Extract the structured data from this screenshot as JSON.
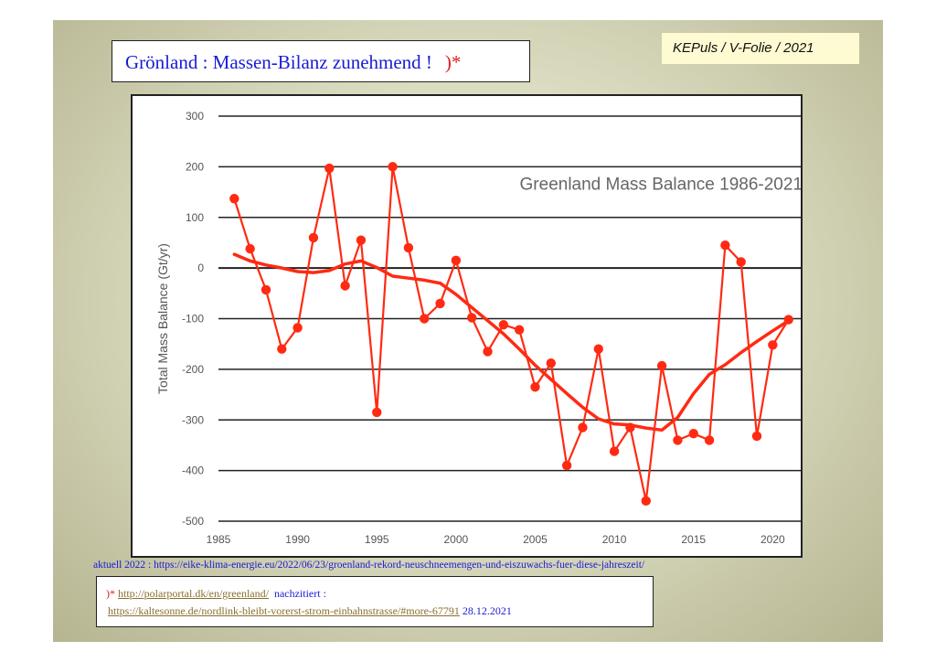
{
  "slide": {
    "title": "Grönland : Massen-Bilanz zunehmend !",
    "title_marker": ")*",
    "tag": "KEPuls / V-Folie / 2021",
    "aktuell": "aktuell 2022 : https://eike-klima-energie.eu/2022/06/23/groenland-rekord-neuschneemengen-und-eiszuwachs-fuer-diese-jahreszeit/",
    "source_marker": ")*",
    "source_link1": "http://polarportal.dk/en/greenland/",
    "source_note": "nachzitiert :",
    "source_link2": "https://kaltesonne.de/nordlink-bleibt-vorerst-strom-einbahnstrasse/#more-67791",
    "source_date": "28.12.2021"
  },
  "colors": {
    "series": "#ff2a12",
    "title_text": "#1a1ad6",
    "marker_red": "#e01b1b"
  },
  "chart_data": {
    "type": "line",
    "title": "Greenland Mass Balance 1986-2021",
    "xlabel": "",
    "ylabel": "Total Mass Balance (Gt/yr)",
    "xlim": [
      1985,
      2022
    ],
    "ylim": [
      -500,
      300
    ],
    "xticks": [
      "1985",
      "1990",
      "1995",
      "2000",
      "2005",
      "2010",
      "2015",
      "2020"
    ],
    "yticks": [
      "300",
      "200",
      "100",
      "0",
      "-100",
      "-200",
      "-300",
      "-400",
      "-500"
    ],
    "grid": true,
    "x": [
      1986,
      1987,
      1988,
      1989,
      1990,
      1991,
      1992,
      1993,
      1994,
      1995,
      1996,
      1997,
      1998,
      1999,
      2000,
      2001,
      2002,
      2003,
      2004,
      2005,
      2006,
      2007,
      2008,
      2009,
      2010,
      2011,
      2012,
      2013,
      2014,
      2015,
      2016,
      2017,
      2018,
      2019,
      2020,
      2021
    ],
    "series": [
      {
        "style": "line-markers",
        "values": [
          137,
          38,
          -43,
          -160,
          -118,
          60,
          197,
          -35,
          55,
          -285,
          200,
          40,
          -100,
          -70,
          15,
          -98,
          -165,
          -112,
          -122,
          -235,
          -188,
          -390,
          -315,
          -160,
          -362,
          -315,
          -460,
          -193,
          -340,
          -327,
          -340,
          45,
          12,
          -332,
          -152,
          -102
        ]
      },
      {
        "style": "smooth",
        "values": [
          27,
          14,
          6,
          0,
          -7,
          -9,
          -5,
          8,
          14,
          1,
          -16,
          -20,
          -24,
          -30,
          -52,
          -78,
          -104,
          -130,
          -160,
          -192,
          -220,
          -248,
          -275,
          -298,
          -308,
          -310,
          -316,
          -320,
          -295,
          -248,
          -210,
          -191,
          -167,
          -145,
          -124,
          -104
        ]
      }
    ]
  }
}
